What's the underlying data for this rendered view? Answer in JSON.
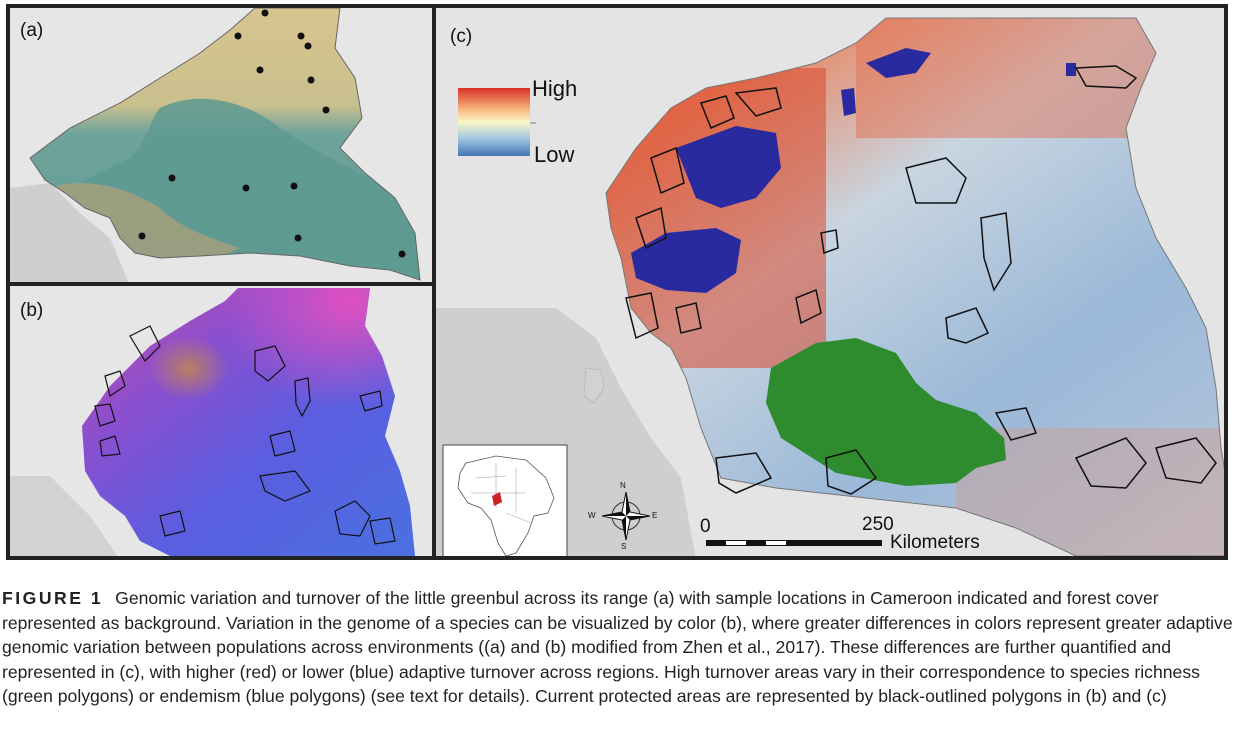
{
  "panels": {
    "a": {
      "label": "(a)"
    },
    "b": {
      "label": "(b)"
    },
    "c": {
      "label": "(c)"
    }
  },
  "legend": {
    "high": "High",
    "low": "Low",
    "gradient_colors": [
      "#d73027",
      "#f6b27a",
      "#fbf5c8",
      "#9ec5e0",
      "#4575b4"
    ]
  },
  "compass": {
    "north": "N",
    "south": "S",
    "east": "E",
    "west": "W"
  },
  "scalebar": {
    "start": "0",
    "end": "250",
    "unit": "Kilometers"
  },
  "colors": {
    "richness": "#2e8b2e",
    "endemism": "#2a2aa0",
    "forest": "#5e9a92",
    "savanna": "#d8c48e",
    "inset_country": "#cc2222"
  },
  "caption": {
    "label": "FIGURE 1",
    "text": "Genomic variation and turnover of the little greenbul across its range (a) with sample locations in Cameroon indicated and forest cover represented as background. Variation in the genome of a species can be visualized by color (b), where greater differences in colors represent greater adaptive genomic variation between populations across environments ((a) and (b) modified from Zhen et al., 2017). These differences are further quantified and represented in (c), with higher (red) or lower (blue) adaptive turnover across regions. High turnover areas vary in their correspondence to species richness (green polygons) or endemism (blue polygons) (see text for details). Current protected areas are represented by black-outlined polygons in (b) and (c)"
  }
}
